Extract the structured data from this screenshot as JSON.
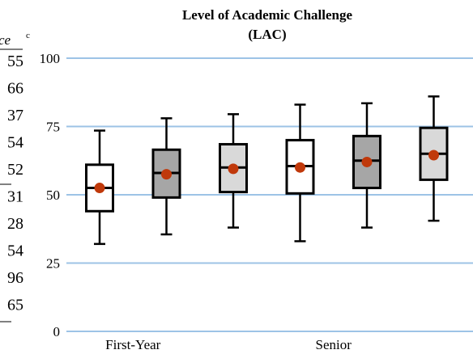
{
  "chart_data": {
    "type": "box",
    "title_lines": [
      "Level of Academic Challenge",
      "(LAC)"
    ],
    "ylim": [
      0,
      100
    ],
    "yticks": [
      0,
      25,
      50,
      75,
      100
    ],
    "x_labels": [
      {
        "label": "First-Year",
        "group": 1
      },
      {
        "label": "Senior",
        "group": 4
      }
    ],
    "boxes": [
      {
        "whisker_low": 32,
        "q1": 44,
        "median": 52.5,
        "q3": 61,
        "whisker_high": 73.5,
        "mean": 52.5,
        "fill": "#ffffff"
      },
      {
        "whisker_low": 35.5,
        "q1": 49,
        "median": 58,
        "q3": 66.5,
        "whisker_high": 78,
        "mean": 57.5,
        "fill": "#a6a6a6"
      },
      {
        "whisker_low": 38,
        "q1": 51,
        "median": 60,
        "q3": 68.5,
        "whisker_high": 79.5,
        "mean": 59.5,
        "fill": "#d9d9d9"
      },
      {
        "whisker_low": 33,
        "q1": 50.5,
        "median": 60.5,
        "q3": 70,
        "whisker_high": 83,
        "mean": 60,
        "fill": "#ffffff"
      },
      {
        "whisker_low": 38,
        "q1": 52.5,
        "median": 62.5,
        "q3": 71.5,
        "whisker_high": 83.5,
        "mean": 62,
        "fill": "#a6a6a6"
      },
      {
        "whisker_low": 40.5,
        "q1": 55.5,
        "median": 65,
        "q3": 74.5,
        "whisker_high": 86,
        "mean": 64.5,
        "fill": "#d9d9d9"
      }
    ],
    "colors": {
      "gridline": "#9dc3e6",
      "mean_marker": "#c0390b",
      "box_stroke": "#000000"
    },
    "grid": true
  },
  "side_panel": {
    "header_italic": "ce",
    "header_sup": "c",
    "values": [
      "55",
      "66",
      "37",
      "54",
      "52",
      "31",
      "28",
      "54",
      "96",
      "65"
    ]
  }
}
